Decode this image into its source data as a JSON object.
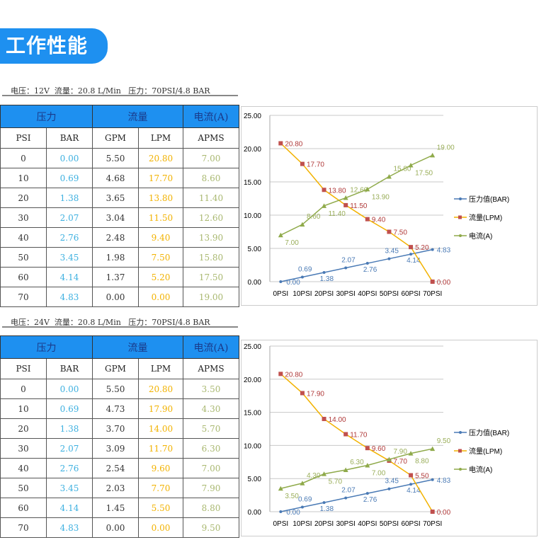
{
  "title": "工作性能",
  "colors": {
    "accent": "#1e90f0",
    "bar": "#4a7ab5",
    "lpm": "#f2b200",
    "lpm_marker": "#c0392b",
    "amp": "#8faa4a"
  },
  "tables": [
    {
      "spec": "电压：12V  流量：20.8 L/Min   压力：70PSI/4.8 BAR",
      "groups": [
        "压力",
        "流量",
        "电流(A)"
      ],
      "headers": [
        "PSI",
        "BAR",
        "GPM",
        "LPM",
        "APMS"
      ],
      "rows": [
        [
          "0",
          "0.00",
          "5.50",
          "20.80",
          "7.00"
        ],
        [
          "10",
          "0.69",
          "4.68",
          "17.70",
          "8.60"
        ],
        [
          "20",
          "1.38",
          "3.65",
          "13.80",
          "11.40"
        ],
        [
          "30",
          "2.07",
          "3.04",
          "11.50",
          "12.60"
        ],
        [
          "40",
          "2.76",
          "2.48",
          "9.40",
          "13.90"
        ],
        [
          "50",
          "3.45",
          "1.98",
          "7.50",
          "15.80"
        ],
        [
          "60",
          "4.14",
          "1.37",
          "5.20",
          "17.50"
        ],
        [
          "70",
          "4.83",
          "0.00",
          "0.00",
          "19.00"
        ]
      ]
    },
    {
      "spec": "电压：24V  流量：20.8 L/Min   压力：70PSI/4.8 BAR",
      "groups": [
        "压力",
        "流量",
        "电流(A)"
      ],
      "headers": [
        "PSI",
        "BAR",
        "GPM",
        "LPM",
        "APMS"
      ],
      "rows": [
        [
          "0",
          "0.00",
          "5.50",
          "20.80",
          "3.50"
        ],
        [
          "10",
          "0.69",
          "4.73",
          "17.90",
          "4.30"
        ],
        [
          "20",
          "1.38",
          "3.70",
          "14.00",
          "5.70"
        ],
        [
          "30",
          "2.07",
          "3.09",
          "11.70",
          "6.30"
        ],
        [
          "40",
          "2.76",
          "2.54",
          "9.60",
          "7.00"
        ],
        [
          "50",
          "3.45",
          "2.03",
          "7.70",
          "7.90"
        ],
        [
          "60",
          "4.14",
          "1.45",
          "5.50",
          "8.80"
        ],
        [
          "70",
          "4.83",
          "0.00",
          "0.00",
          "9.50"
        ]
      ]
    }
  ],
  "chart_data": [
    {
      "type": "line",
      "categories": [
        "0PSI",
        "10PSI",
        "20PSI",
        "30PSI",
        "40PSI",
        "50PSI",
        "60PSI",
        "70PSI"
      ],
      "ylim": [
        0,
        25
      ],
      "yticks": [
        "0.00",
        "5.00",
        "10.00",
        "15.00",
        "20.00",
        "25.00"
      ],
      "legend": "right",
      "grid": true,
      "series": [
        {
          "name": "压力值(BAR)",
          "values": [
            0,
            0.69,
            1.38,
            2.07,
            2.76,
            3.45,
            4.14,
            4.83
          ],
          "labels": [
            "0.00",
            "0.69",
            "1.38",
            "2.07",
            "2.76",
            "3.45",
            "4.14",
            "4.83"
          ]
        },
        {
          "name": "流量(LPM)",
          "values": [
            20.8,
            17.7,
            13.8,
            11.5,
            9.4,
            7.5,
            5.2,
            0
          ],
          "labels": [
            "20.80",
            "17.70",
            "13.80",
            "11.50",
            "9.40",
            "7.50",
            "5.20",
            "0.00"
          ]
        },
        {
          "name": "电流(A)",
          "values": [
            7,
            8.6,
            11.4,
            12.6,
            13.9,
            15.8,
            17.5,
            19
          ],
          "labels": [
            "7.00",
            "8.60",
            "11.40",
            "12.60",
            "13.90",
            "15.80",
            "17.50",
            "19.00"
          ]
        }
      ]
    },
    {
      "type": "line",
      "categories": [
        "0PSI",
        "10PSI",
        "20PSI",
        "30PSI",
        "40PSI",
        "50PSI",
        "60PSI",
        "70PSI"
      ],
      "ylim": [
        0,
        25
      ],
      "yticks": [
        "0.00",
        "5.00",
        "10.00",
        "15.00",
        "20.00",
        "25.00"
      ],
      "legend": "right",
      "grid": true,
      "series": [
        {
          "name": "压力值(BAR)",
          "values": [
            0,
            0.69,
            1.38,
            2.07,
            2.76,
            3.45,
            4.14,
            4.83
          ],
          "labels": [
            "0.00",
            "0.69",
            "1.38",
            "2.07",
            "2.76",
            "3.45",
            "4.14",
            "4.83"
          ]
        },
        {
          "name": "流量(LPM)",
          "values": [
            20.8,
            17.9,
            14,
            11.7,
            9.6,
            7.7,
            5.5,
            0
          ],
          "labels": [
            "20.80",
            "17.90",
            "14.00",
            "11.70",
            "9.60",
            "7.70",
            "5.50",
            "0.00"
          ]
        },
        {
          "name": "电流(A)",
          "values": [
            3.5,
            4.3,
            5.7,
            6.3,
            7,
            7.9,
            8.8,
            9.5
          ],
          "labels": [
            "3.50",
            "4.30",
            "5.70",
            "6.30",
            "7.00",
            "7.90",
            "8.80",
            "9.50"
          ]
        }
      ]
    }
  ]
}
